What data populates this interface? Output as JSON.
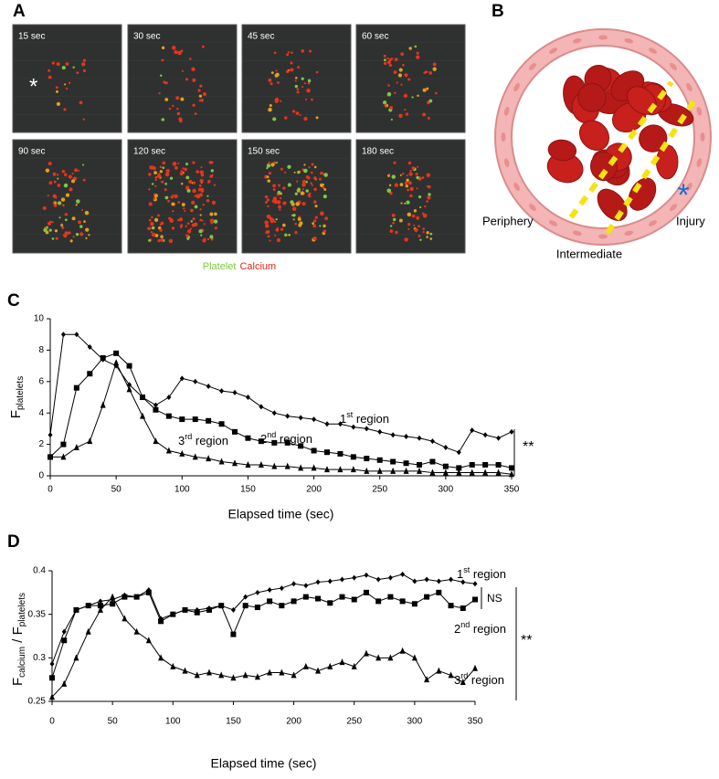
{
  "panels": {
    "A": {
      "letter": "A",
      "frames": [
        "15 sec",
        "30 sec",
        "45 sec",
        "60 sec",
        "90 sec",
        "120 sec",
        "150 sec",
        "180 sec"
      ],
      "marker": "*",
      "legend": [
        {
          "name": "Platelet",
          "color": "#7ac943"
        },
        {
          "name": "Calcium",
          "color": "#e8241c"
        }
      ]
    },
    "B": {
      "letter": "B",
      "injury_marker": "*",
      "labels": [
        "Periphery",
        "Intermediate",
        "Injury"
      ]
    }
  },
  "chart_data": [
    {
      "type": "line",
      "panel_label": "C",
      "xlabel": "Elapsed time (sec)",
      "ylabel_parts": [
        "F",
        "platelets"
      ],
      "x": [
        0,
        10,
        20,
        30,
        40,
        50,
        60,
        70,
        80,
        90,
        100,
        110,
        120,
        130,
        140,
        150,
        160,
        170,
        180,
        190,
        200,
        210,
        220,
        230,
        240,
        250,
        260,
        270,
        280,
        290,
        300,
        310,
        320,
        330,
        340,
        350
      ],
      "xlim": [
        0,
        350
      ],
      "ylim": [
        0,
        10
      ],
      "xticks": [
        0,
        50,
        100,
        150,
        200,
        250,
        300,
        350
      ],
      "yticks": [
        0,
        2,
        4,
        6,
        8,
        10
      ],
      "series": [
        {
          "name": "1st region",
          "color": "#000000",
          "marker": "diamond",
          "values": [
            2.6,
            9.0,
            9.0,
            8.2,
            7.4,
            7.0,
            5.8,
            5.0,
            4.5,
            5.0,
            6.2,
            6.0,
            5.7,
            5.4,
            5.3,
            5.0,
            4.4,
            4.0,
            3.8,
            3.7,
            3.6,
            3.3,
            3.3,
            3.1,
            3.0,
            2.8,
            2.6,
            2.5,
            2.4,
            2.2,
            1.8,
            1.5,
            2.9,
            2.6,
            2.4,
            2.8
          ]
        },
        {
          "name": "2nd region",
          "color": "#000000",
          "marker": "square",
          "values": [
            1.2,
            2.0,
            5.6,
            6.5,
            7.5,
            7.8,
            7.0,
            5.0,
            4.2,
            3.8,
            3.6,
            3.6,
            3.5,
            3.3,
            2.8,
            2.4,
            2.2,
            2.1,
            2.1,
            1.9,
            1.6,
            1.5,
            1.4,
            1.2,
            1.1,
            1.0,
            0.9,
            0.8,
            0.7,
            0.9,
            0.6,
            0.5,
            0.7,
            0.7,
            0.7,
            0.5
          ]
        },
        {
          "name": "3rd region",
          "color": "#000000",
          "marker": "triangle",
          "values": [
            1.2,
            1.2,
            1.8,
            2.2,
            4.5,
            7.2,
            5.5,
            3.8,
            2.2,
            1.6,
            1.4,
            1.2,
            1.1,
            0.9,
            0.8,
            0.7,
            0.7,
            0.6,
            0.6,
            0.5,
            0.5,
            0.4,
            0.4,
            0.4,
            0.3,
            0.3,
            0.3,
            0.3,
            0.3,
            0.2,
            0.2,
            0.2,
            0.2,
            0.2,
            0.2,
            0.1
          ]
        }
      ],
      "annotations": [
        "**"
      ]
    },
    {
      "type": "line",
      "panel_label": "D",
      "xlabel": "Elapsed time (sec)",
      "ylabel_parts": [
        "F",
        "calcium",
        " / F",
        "platelets"
      ],
      "x": [
        0,
        10,
        20,
        30,
        40,
        50,
        60,
        70,
        80,
        90,
        100,
        110,
        120,
        130,
        140,
        150,
        160,
        170,
        180,
        190,
        200,
        210,
        220,
        230,
        240,
        250,
        260,
        270,
        280,
        290,
        300,
        310,
        320,
        330,
        340,
        350
      ],
      "xlim": [
        0,
        350
      ],
      "ylim": [
        0.25,
        0.4
      ],
      "xticks": [
        0,
        50,
        100,
        150,
        200,
        250,
        300,
        350
      ],
      "yticks": [
        0.25,
        0.3,
        0.35,
        0.4
      ],
      "series": [
        {
          "name": "1st region",
          "color": "#000000",
          "marker": "diamond",
          "values": [
            0.293,
            0.33,
            0.355,
            0.36,
            0.365,
            0.367,
            0.372,
            0.37,
            0.378,
            0.345,
            0.35,
            0.355,
            0.355,
            0.357,
            0.36,
            0.355,
            0.37,
            0.375,
            0.378,
            0.38,
            0.385,
            0.383,
            0.387,
            0.388,
            0.39,
            0.392,
            0.395,
            0.39,
            0.392,
            0.396,
            0.388,
            0.39,
            0.388,
            0.39,
            0.387,
            0.385
          ]
        },
        {
          "name": "2nd region",
          "color": "#000000",
          "marker": "square",
          "values": [
            0.277,
            0.32,
            0.355,
            0.36,
            0.36,
            0.362,
            0.37,
            0.37,
            0.375,
            0.342,
            0.35,
            0.355,
            0.352,
            0.355,
            0.36,
            0.327,
            0.36,
            0.358,
            0.365,
            0.36,
            0.365,
            0.37,
            0.368,
            0.363,
            0.37,
            0.367,
            0.375,
            0.365,
            0.37,
            0.365,
            0.362,
            0.37,
            0.375,
            0.36,
            0.357,
            0.367
          ]
        },
        {
          "name": "3rd region",
          "color": "#000000",
          "marker": "triangle",
          "values": [
            0.255,
            0.27,
            0.3,
            0.33,
            0.355,
            0.37,
            0.345,
            0.33,
            0.32,
            0.3,
            0.29,
            0.285,
            0.28,
            0.283,
            0.28,
            0.277,
            0.28,
            0.278,
            0.283,
            0.283,
            0.28,
            0.29,
            0.285,
            0.29,
            0.295,
            0.29,
            0.305,
            0.3,
            0.3,
            0.308,
            0.3,
            0.275,
            0.285,
            0.28,
            0.272,
            0.288
          ]
        }
      ],
      "annotations": [
        "NS",
        "**"
      ]
    }
  ]
}
